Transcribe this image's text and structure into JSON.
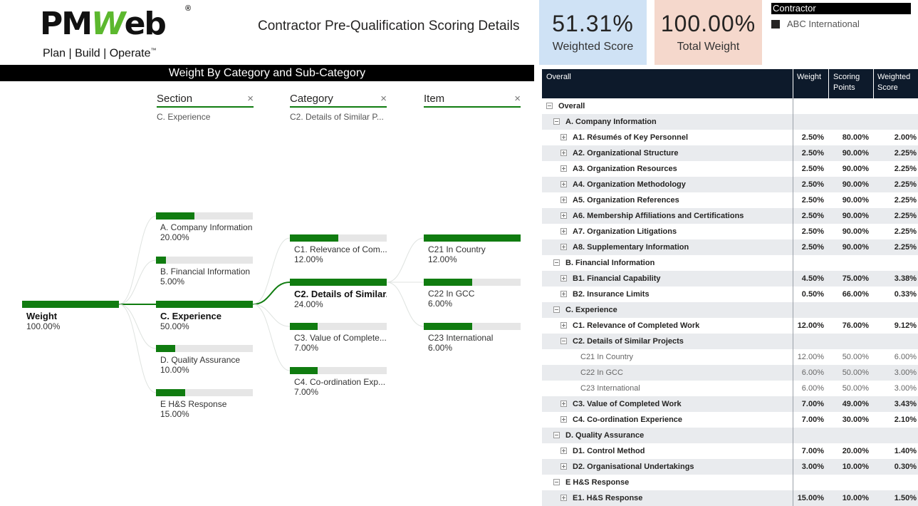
{
  "logo": {
    "brand_left": "PM",
    "brand_w": "W",
    "brand_right": "eb",
    "reg": "®",
    "tagline": "Plan | Build | Operate",
    "tm": "™"
  },
  "page_title": "Contractor Pre-Qualification Scoring Details",
  "kpis": {
    "weighted_score": {
      "value": "51.31%",
      "label": "Weighted Score"
    },
    "total_weight": {
      "value": "100.00%",
      "label": "Total Weight"
    }
  },
  "contractor_slicer": {
    "title": "Contractor",
    "item": "ABC International"
  },
  "tree": {
    "title": "Weight By Category and Sub-Category",
    "columns": [
      {
        "label": "Section",
        "filter": "C. Experience"
      },
      {
        "label": "Category",
        "filter": "C2. Details of Similar P..."
      },
      {
        "label": "Item",
        "filter": ""
      }
    ],
    "close_glyph": "×",
    "root": {
      "label": "Weight",
      "value": "100.00%",
      "fraction": 1.0
    },
    "sections": [
      {
        "label": "A. Company Information",
        "value": "20.00%",
        "fraction": 0.4
      },
      {
        "label": "B. Financial Information",
        "value": "5.00%",
        "fraction": 0.1
      },
      {
        "label": "C. Experience",
        "value": "50.00%",
        "fraction": 1.0
      },
      {
        "label": "D. Quality Assurance",
        "value": "10.00%",
        "fraction": 0.2
      },
      {
        "label": "E H&S Response",
        "value": "15.00%",
        "fraction": 0.3
      }
    ],
    "categories": [
      {
        "label": "C1. Relevance of Com...",
        "value": "12.00%",
        "fraction": 0.5
      },
      {
        "label": "C2. Details of Similar...",
        "value": "24.00%",
        "fraction": 1.0
      },
      {
        "label": "C3. Value of Complete...",
        "value": "7.00%",
        "fraction": 0.29
      },
      {
        "label": "C4. Co-ordination Exp...",
        "value": "7.00%",
        "fraction": 0.29
      }
    ],
    "items": [
      {
        "label": "C21 In Country",
        "value": "12.00%",
        "fraction": 1.0
      },
      {
        "label": "C22 In GCC",
        "value": "6.00%",
        "fraction": 0.5
      },
      {
        "label": "C23 International",
        "value": "6.00%",
        "fraction": 0.5
      }
    ]
  },
  "matrix": {
    "headers": {
      "name": "Overall",
      "weight": "Weight",
      "scoring": "Scoring Points",
      "weighted": "Weighted Score"
    },
    "rows": [
      {
        "name": "Overall",
        "level": 0,
        "toggle": "minus",
        "style": "group",
        "weight": "",
        "points": "",
        "score": ""
      },
      {
        "name": "A. Company Information",
        "level": 1,
        "toggle": "minus",
        "style": "group",
        "weight": "",
        "points": "",
        "score": ""
      },
      {
        "name": "A1. Résumés of Key Personnel",
        "level": 2,
        "toggle": "plus",
        "style": "bold",
        "weight": "2.50%",
        "points": "80.00%",
        "score": "2.00%"
      },
      {
        "name": "A2. Organizational Structure",
        "level": 2,
        "toggle": "plus",
        "style": "bold",
        "weight": "2.50%",
        "points": "90.00%",
        "score": "2.25%"
      },
      {
        "name": "A3. Organization Resources",
        "level": 2,
        "toggle": "plus",
        "style": "bold",
        "weight": "2.50%",
        "points": "90.00%",
        "score": "2.25%"
      },
      {
        "name": "A4. Organization Methodology",
        "level": 2,
        "toggle": "plus",
        "style": "bold",
        "weight": "2.50%",
        "points": "90.00%",
        "score": "2.25%"
      },
      {
        "name": "A5. Organization References",
        "level": 2,
        "toggle": "plus",
        "style": "bold",
        "weight": "2.50%",
        "points": "90.00%",
        "score": "2.25%"
      },
      {
        "name": "A6. Membership Affiliations and Certifications",
        "level": 2,
        "toggle": "plus",
        "style": "bold",
        "weight": "2.50%",
        "points": "90.00%",
        "score": "2.25%"
      },
      {
        "name": "A7. Organization Litigations",
        "level": 2,
        "toggle": "plus",
        "style": "bold",
        "weight": "2.50%",
        "points": "90.00%",
        "score": "2.25%"
      },
      {
        "name": "A8. Supplementary Information",
        "level": 2,
        "toggle": "plus",
        "style": "bold",
        "weight": "2.50%",
        "points": "90.00%",
        "score": "2.25%"
      },
      {
        "name": "B. Financial Information",
        "level": 1,
        "toggle": "minus",
        "style": "group",
        "weight": "",
        "points": "",
        "score": ""
      },
      {
        "name": "B1. Financial Capability",
        "level": 2,
        "toggle": "plus",
        "style": "bold",
        "weight": "4.50%",
        "points": "75.00%",
        "score": "3.38%"
      },
      {
        "name": "B2. Insurance Limits",
        "level": 2,
        "toggle": "plus",
        "style": "bold",
        "weight": "0.50%",
        "points": "66.00%",
        "score": "0.33%"
      },
      {
        "name": "C. Experience",
        "level": 1,
        "toggle": "minus",
        "style": "group",
        "weight": "",
        "points": "",
        "score": ""
      },
      {
        "name": "C1. Relevance of Completed Work",
        "level": 2,
        "toggle": "plus",
        "style": "bold",
        "weight": "12.00%",
        "points": "76.00%",
        "score": "9.12%"
      },
      {
        "name": "C2. Details of Similar Projects",
        "level": 2,
        "toggle": "minus",
        "style": "bold",
        "weight": "",
        "points": "",
        "score": ""
      },
      {
        "name": "C21 In Country",
        "level": 3,
        "toggle": "",
        "style": "leaf",
        "weight": "12.00%",
        "points": "50.00%",
        "score": "6.00%"
      },
      {
        "name": "C22 In GCC",
        "level": 3,
        "toggle": "",
        "style": "leaf",
        "weight": "6.00%",
        "points": "50.00%",
        "score": "3.00%"
      },
      {
        "name": "C23 International",
        "level": 3,
        "toggle": "",
        "style": "leaf",
        "weight": "6.00%",
        "points": "50.00%",
        "score": "3.00%"
      },
      {
        "name": "C3. Value of Completed Work",
        "level": 2,
        "toggle": "plus",
        "style": "bold",
        "weight": "7.00%",
        "points": "49.00%",
        "score": "3.43%"
      },
      {
        "name": "C4. Co-ordination Experience",
        "level": 2,
        "toggle": "plus",
        "style": "bold",
        "weight": "7.00%",
        "points": "30.00%",
        "score": "2.10%"
      },
      {
        "name": "D. Quality Assurance",
        "level": 1,
        "toggle": "minus",
        "style": "group",
        "weight": "",
        "points": "",
        "score": ""
      },
      {
        "name": "D1. Control Method",
        "level": 2,
        "toggle": "plus",
        "style": "bold",
        "weight": "7.00%",
        "points": "20.00%",
        "score": "1.40%"
      },
      {
        "name": "D2. Organisational Undertakings",
        "level": 2,
        "toggle": "plus",
        "style": "bold",
        "weight": "3.00%",
        "points": "10.00%",
        "score": "0.30%"
      },
      {
        "name": "E H&S Response",
        "level": 1,
        "toggle": "minus",
        "style": "group",
        "weight": "",
        "points": "",
        "score": ""
      },
      {
        "name": "E1. H&S Response",
        "level": 2,
        "toggle": "plus",
        "style": "bold",
        "weight": "15.00%",
        "points": "10.00%",
        "score": "1.50%"
      }
    ]
  },
  "colors": {
    "bar_fill": "#107c10",
    "bar_track": "#e6e6e6",
    "kpi_blue": "#cfe2f5",
    "kpi_pink": "#f5d8cc",
    "matrix_header": "#0d1a2b"
  }
}
